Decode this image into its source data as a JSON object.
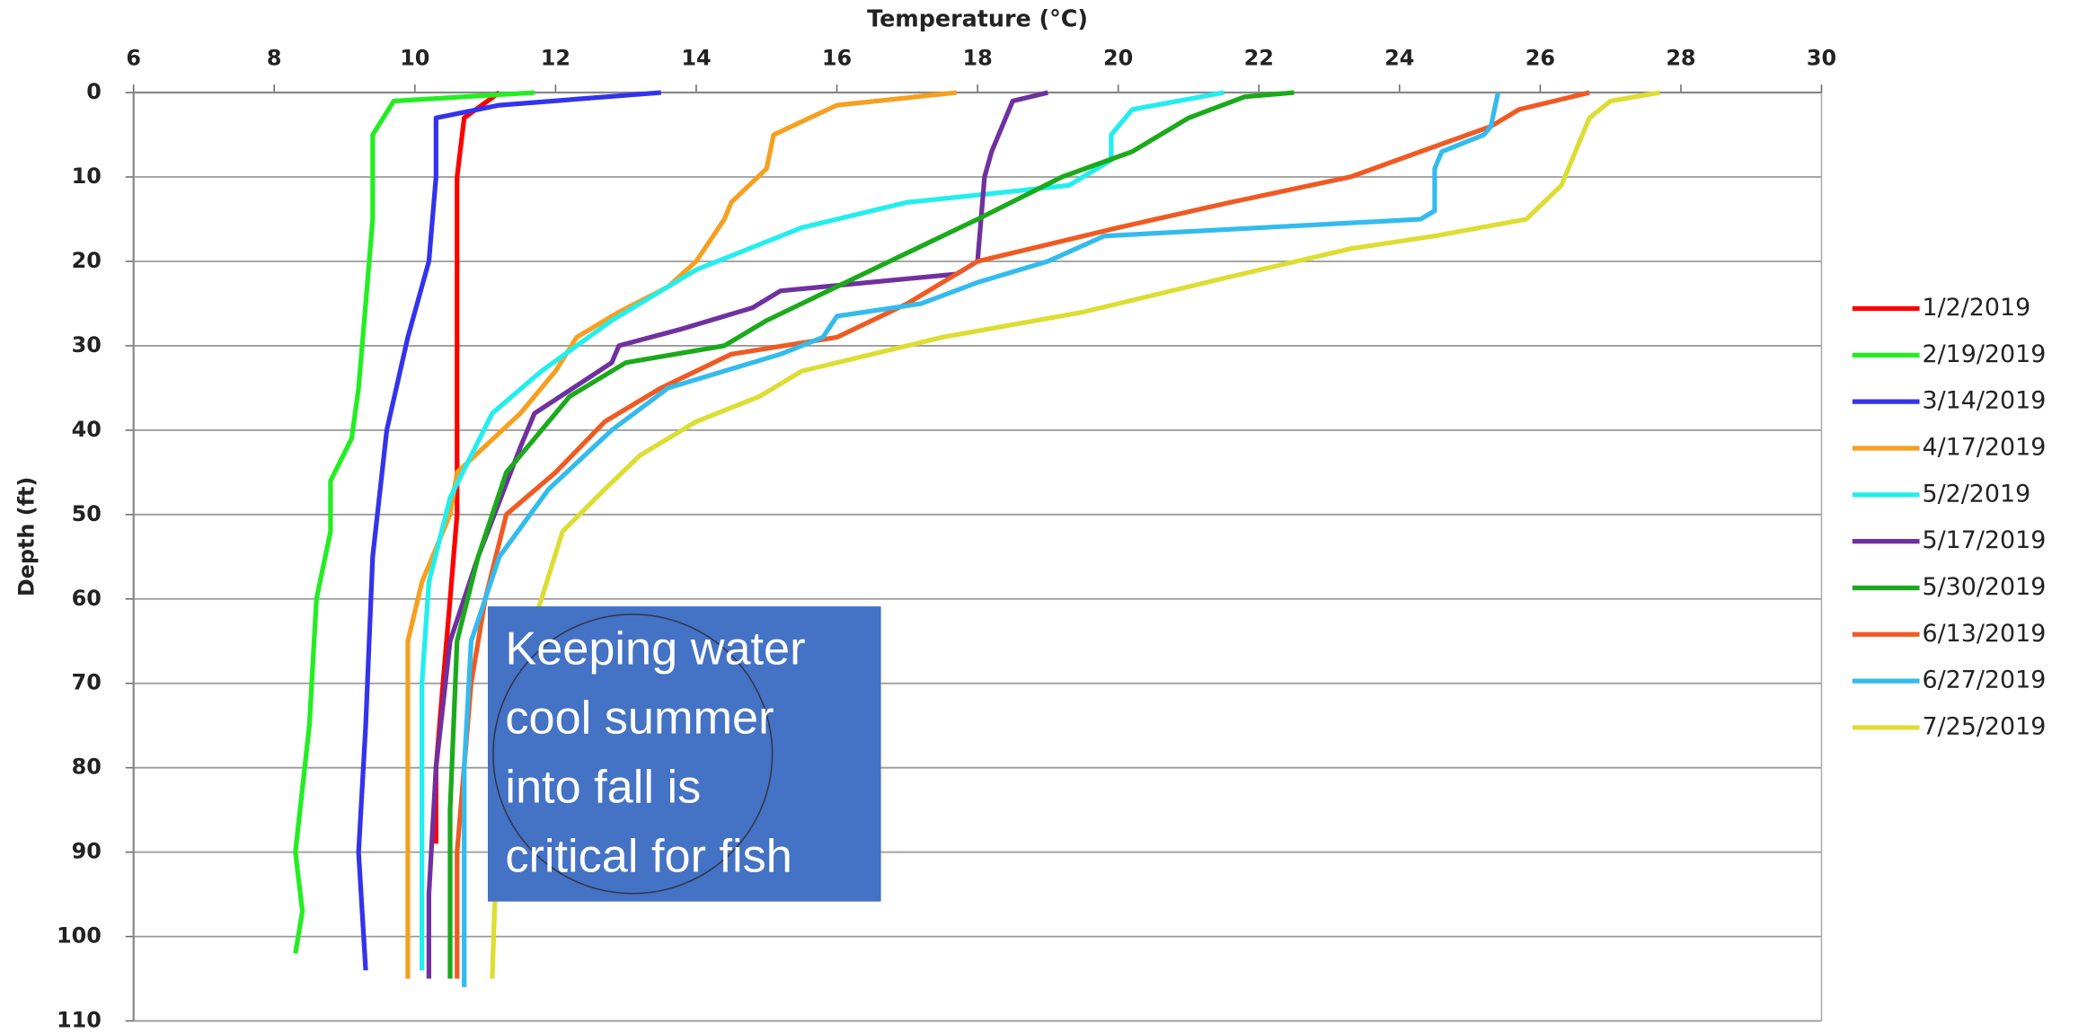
{
  "chart_data": {
    "type": "line",
    "xlabel": "Temperature (°C)",
    "ylabel": "Depth (ft)",
    "xlim": [
      6,
      30
    ],
    "xticks": [
      6,
      8,
      10,
      12,
      14,
      16,
      18,
      20,
      22,
      24,
      26,
      28,
      30
    ],
    "ylim": [
      0,
      110
    ],
    "yticks": [
      0,
      10,
      20,
      30,
      40,
      50,
      60,
      70,
      80,
      90,
      100,
      110
    ],
    "y_inverted": true,
    "x_axis_position": "top",
    "grid": true,
    "legend_position": "right",
    "annotation": {
      "lines": [
        "Keeping water",
        "cool summer",
        "into fall is",
        "critical for fish"
      ],
      "color": "#4472c4"
    },
    "series": [
      {
        "name": "1/2/2019",
        "color": "#ff0000",
        "x": [
          11.2,
          10.7,
          10.6,
          10.6,
          10.6,
          10.5,
          10.4,
          10.3,
          10.3
        ],
        "values": [
          0,
          3,
          10,
          30,
          50,
          60,
          70,
          80,
          89
        ]
      },
      {
        "name": "2/19/2019",
        "color": "#22ee22",
        "x": [
          11.7,
          9.7,
          9.4,
          9.4,
          9.3,
          9.2,
          9.1,
          8.8,
          8.8,
          8.6,
          8.5,
          8.3,
          8.4,
          8.3
        ],
        "values": [
          0,
          1,
          5,
          15,
          25,
          35,
          41,
          46,
          52,
          60,
          75,
          90,
          97,
          102
        ]
      },
      {
        "name": "3/14/2019",
        "color": "#3333ee",
        "x": [
          13.5,
          11.2,
          10.3,
          10.3,
          10.2,
          9.9,
          9.6,
          9.4,
          9.3,
          9.2,
          9.3
        ],
        "values": [
          0,
          1.5,
          3,
          10,
          20,
          29,
          40,
          55,
          75,
          90,
          104
        ]
      },
      {
        "name": "4/17/2019",
        "color": "#f5a020",
        "x": [
          17.7,
          16,
          15.1,
          15,
          14.5,
          14.4,
          14,
          13.6,
          12.9,
          12.3,
          12,
          11.5,
          10.6,
          10.5,
          10.1,
          9.9,
          9.9,
          9.9
        ],
        "values": [
          0,
          1.5,
          5,
          9,
          13,
          15,
          20,
          23,
          26,
          29,
          33,
          38,
          45,
          50,
          58,
          65,
          80,
          105
        ]
      },
      {
        "name": "5/2/2019",
        "color": "#22eeee",
        "x": [
          21.5,
          20.2,
          19.9,
          19.9,
          19.3,
          17,
          15.5,
          14,
          12.8,
          11.8,
          11.1,
          10.5,
          10.2,
          10.1,
          10.1
        ],
        "values": [
          0,
          2,
          5,
          8,
          11,
          13,
          16,
          21,
          27,
          33,
          38,
          48,
          58,
          70,
          104
        ]
      },
      {
        "name": "5/17/2019",
        "color": "#7030a0",
        "x": [
          19,
          18.5,
          18.2,
          18.1,
          18,
          17.7,
          15.2,
          14.8,
          13.8,
          12.9,
          12.8,
          11.7,
          11.5,
          10.9,
          10.5,
          10.3,
          10.2,
          10.2
        ],
        "values": [
          0,
          1,
          7,
          10,
          20,
          21.5,
          23.5,
          25.5,
          28,
          30,
          32,
          38,
          42,
          55,
          65,
          80,
          95,
          105
        ]
      },
      {
        "name": "5/30/2019",
        "color": "#1aaa1a",
        "x": [
          22.5,
          21.8,
          21,
          20.2,
          19.2,
          18,
          17,
          16,
          15,
          14.4,
          13,
          12.2,
          11.3,
          10.9,
          10.6,
          10.5,
          10.5
        ],
        "values": [
          0,
          0.5,
          3,
          7,
          10,
          15,
          19,
          23,
          27,
          30,
          32,
          36,
          45,
          55,
          65,
          85,
          105
        ]
      },
      {
        "name": "6/13/2019",
        "color": "#f05a22",
        "x": [
          26.7,
          25.7,
          25.3,
          24.3,
          23.3,
          21.6,
          20,
          18,
          17,
          16,
          14.5,
          13.5,
          12.7,
          12,
          11.3,
          11,
          10.8,
          10.6,
          10.6
        ],
        "values": [
          0,
          2,
          4,
          7,
          10,
          13,
          16,
          20,
          25,
          29,
          31,
          35,
          39,
          45,
          50,
          60,
          70,
          90,
          105
        ]
      },
      {
        "name": "6/27/2019",
        "color": "#33bbee",
        "x": [
          25.4,
          25.3,
          25.2,
          24.6,
          24.5,
          24.5,
          24.3,
          19.8,
          19,
          18,
          17.2,
          16,
          15.8,
          15.2,
          13.6,
          12.8,
          11.9,
          11.2,
          10.8,
          10.7,
          10.7
        ],
        "values": [
          0,
          4,
          5,
          7,
          9,
          14,
          15,
          17,
          20,
          22.5,
          25,
          26.5,
          29,
          31,
          35,
          40,
          47,
          55,
          65,
          80,
          106
        ]
      },
      {
        "name": "7/25/2019",
        "color": "#dddd33",
        "x": [
          27.7,
          27,
          26.7,
          26.5,
          26.3,
          25.8,
          24.5,
          23.3,
          21.5,
          19.5,
          17.5,
          16.5,
          15.5,
          14.9,
          14,
          13.2,
          12.7,
          12.1,
          11.8,
          11.4,
          11.2,
          11.1
        ],
        "values": [
          0,
          1,
          3,
          7,
          11,
          15,
          17,
          18.5,
          22,
          26,
          29,
          31,
          33,
          36,
          39,
          43,
          47,
          52,
          60,
          70,
          80,
          105
        ]
      }
    ]
  }
}
